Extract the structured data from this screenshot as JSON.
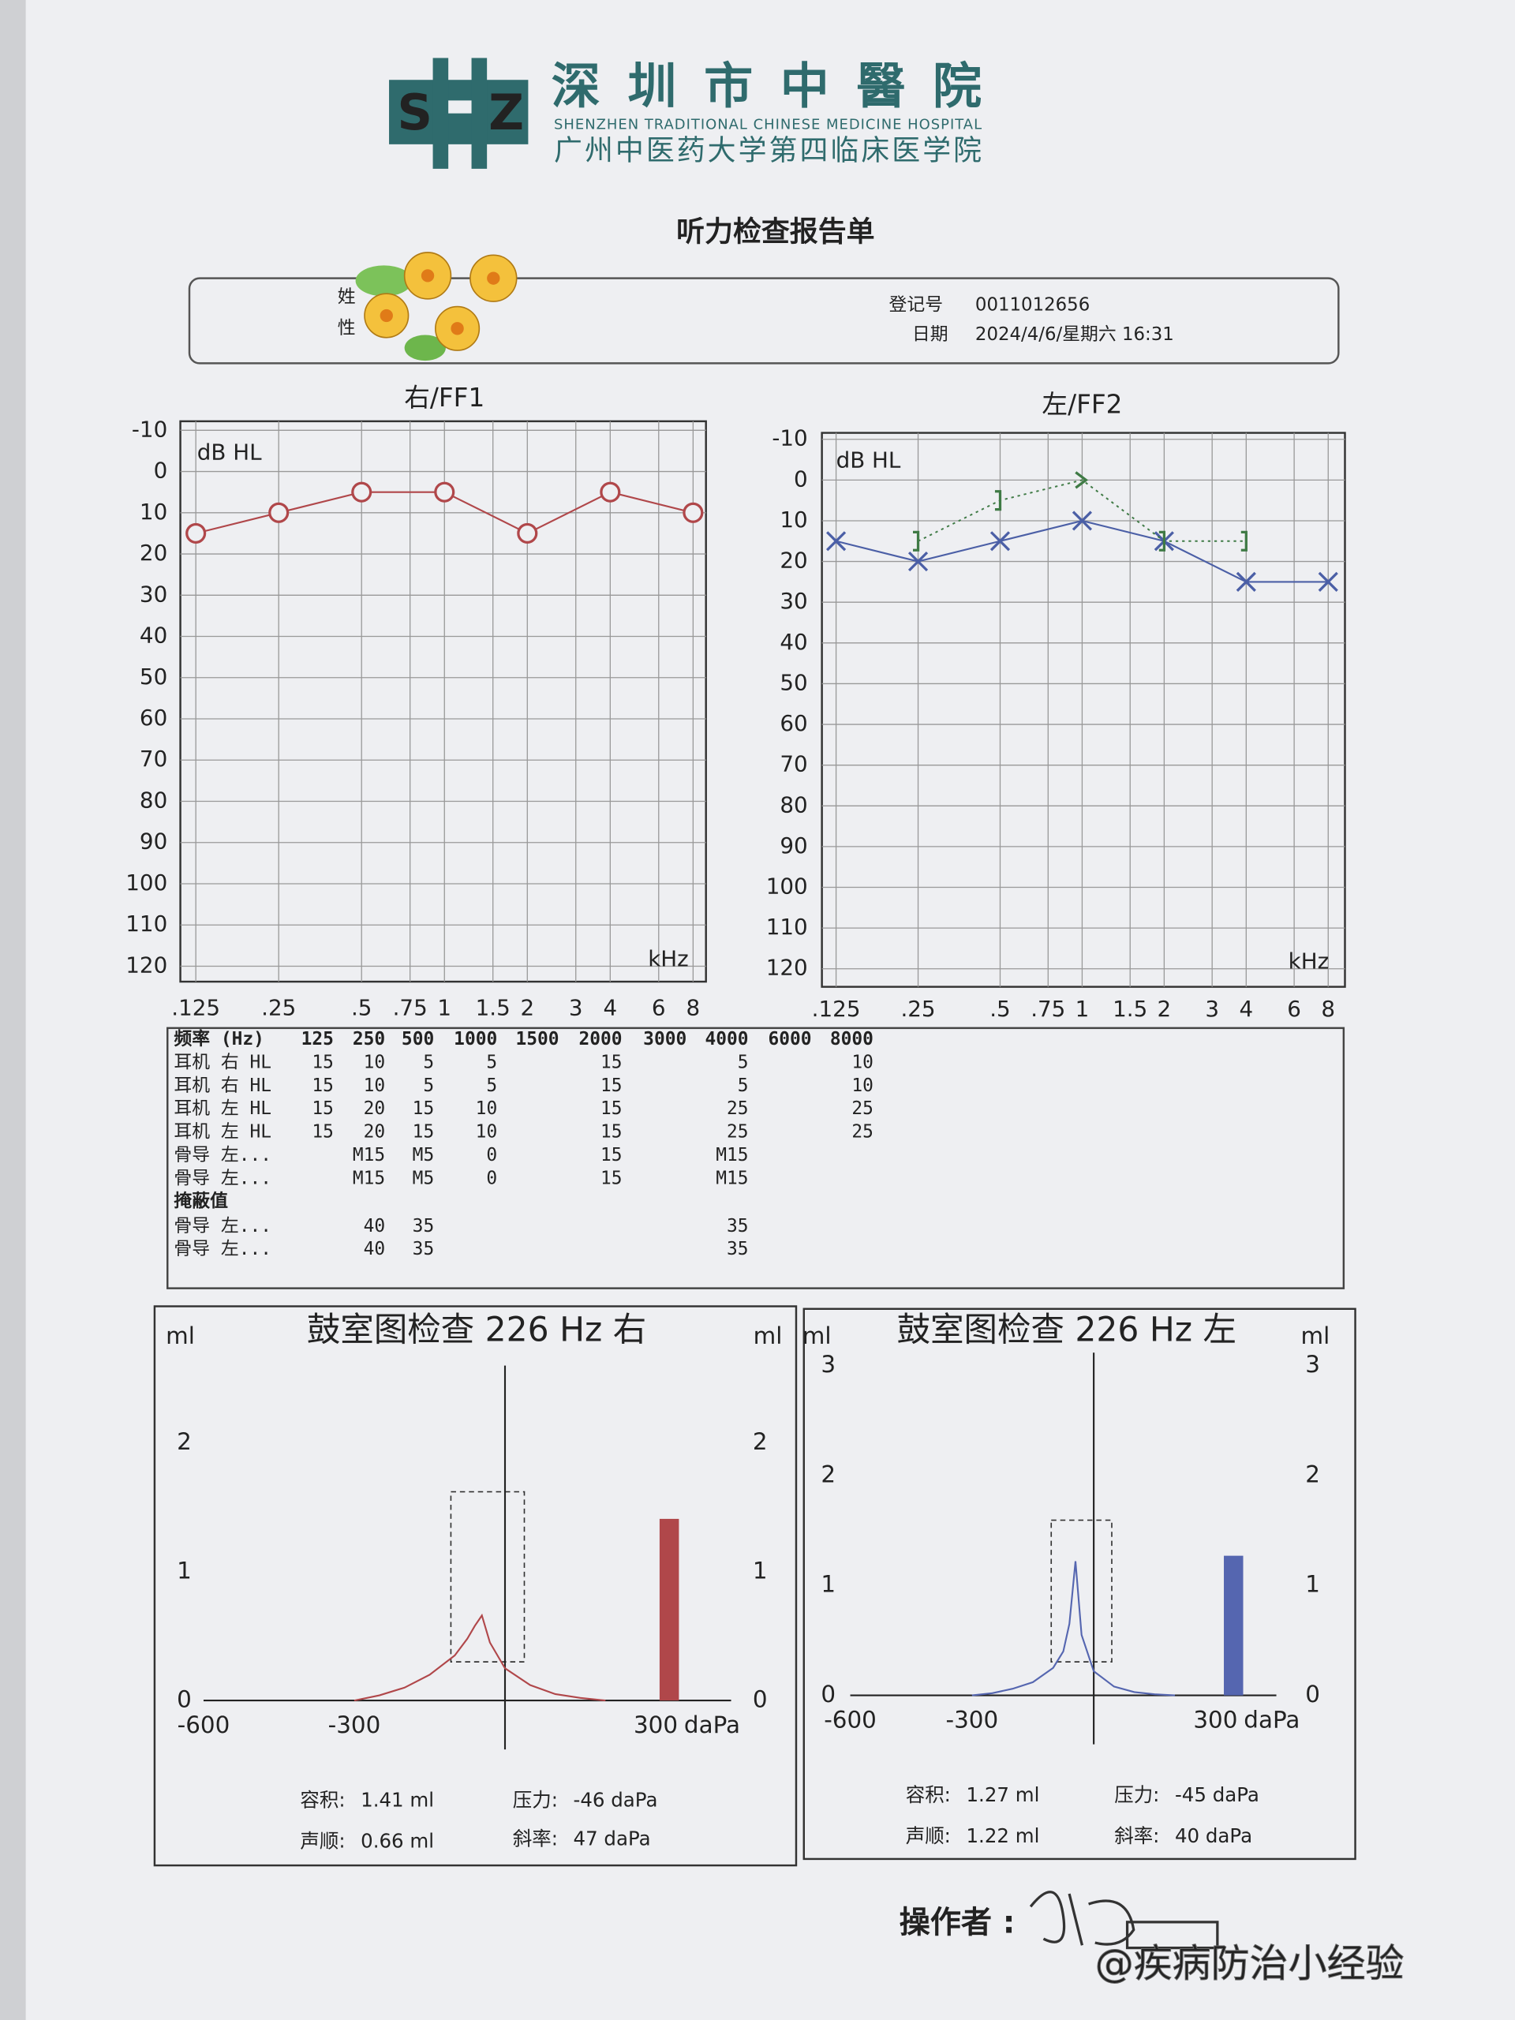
{
  "header": {
    "logo_letters": [
      "S",
      "Z"
    ],
    "name": "深圳市中醫院",
    "name_en": "SHENZHEN TRADITIONAL CHINESE MEDICINE HOSPITAL",
    "affiliation": "广州中医药大学第四临床医学院"
  },
  "title": "听力检查报告单",
  "patient": {
    "name_label": "姓",
    "sex_label": "性",
    "reg_label": "登记号",
    "reg_no": "0011012656",
    "date_label": "日期",
    "date": "2024/4/6/星期六 16:31"
  },
  "audiograms": [
    {
      "title": "右/FF1",
      "unit_label": "dB HL",
      "x_label": "kHz",
      "ylim": [
        -10,
        120
      ],
      "yticks": [
        -10,
        0,
        10,
        20,
        30,
        40,
        50,
        60,
        70,
        80,
        90,
        100,
        110,
        120
      ],
      "xscale": "log",
      "xlim": [
        0.125,
        8
      ],
      "xticks": [
        {
          "value": 0.125,
          "label": ".125"
        },
        {
          "value": 0.25,
          "label": ".25"
        },
        {
          "value": 0.5,
          "label": ".5"
        },
        {
          "value": 0.75,
          "label": ".75"
        },
        1,
        1.5,
        2,
        3,
        4,
        6,
        8
      ],
      "series": [
        {
          "marker": "circle",
          "line": "solid",
          "color": "#b0474a",
          "x": [
            0.125,
            0.25,
            0.5,
            1,
            2,
            4,
            8
          ],
          "values": [
            15,
            10,
            5,
            5,
            15,
            5,
            10
          ]
        }
      ]
    },
    {
      "title": "左/FF2",
      "unit_label": "dB HL",
      "x_label": "kHz",
      "ylim": [
        -10,
        120
      ],
      "yticks": [
        -10,
        0,
        10,
        20,
        30,
        40,
        50,
        60,
        70,
        80,
        90,
        100,
        110,
        120
      ],
      "xscale": "log",
      "xlim": [
        0.125,
        8
      ],
      "xticks": [
        {
          "value": 0.125,
          "label": ".125"
        },
        {
          "value": 0.25,
          "label": ".25"
        },
        {
          "value": 0.5,
          "label": ".5"
        },
        {
          "value": 0.75,
          "label": ".75"
        },
        1,
        1.5,
        2,
        3,
        4,
        6,
        8
      ],
      "series": [
        {
          "marker": "cross",
          "line": "solid",
          "color": "#4b5fa6",
          "x": [
            0.125,
            0.25,
            0.5,
            1,
            2,
            4,
            8
          ],
          "values": [
            15,
            20,
            15,
            10,
            15,
            25,
            25
          ]
        },
        {
          "marker": "bracket",
          "line": "dotted",
          "color": "#3f7a45",
          "x": [
            0.25,
            0.5,
            1,
            2,
            4
          ],
          "values": [
            15,
            5,
            0,
            15,
            15
          ],
          "markers": [
            "bracket",
            "bracket",
            "arrow",
            "bracket",
            "bracket"
          ]
        }
      ]
    }
  ],
  "table": {
    "columns": [
      "频率 (Hz)",
      "125",
      "250",
      "500",
      "1000",
      "1500",
      "2000",
      "3000",
      "4000",
      "6000",
      "8000"
    ],
    "rows": [
      {
        "label": "耳机 右 HL",
        "cells": [
          15,
          10,
          5,
          5,
          null,
          15,
          null,
          5,
          null,
          10
        ]
      },
      {
        "label": "耳机 右 HL",
        "cells": [
          15,
          10,
          5,
          5,
          null,
          15,
          null,
          5,
          null,
          10
        ]
      },
      {
        "label": "耳机 左 HL",
        "cells": [
          15,
          20,
          15,
          10,
          null,
          15,
          null,
          25,
          null,
          25
        ]
      },
      {
        "label": "耳机 左 HL",
        "cells": [
          15,
          20,
          15,
          10,
          null,
          15,
          null,
          25,
          null,
          25
        ]
      },
      {
        "label": "骨导 左...",
        "cells": [
          null,
          "M15",
          "M5",
          0,
          null,
          15,
          null,
          "M15",
          null,
          null
        ]
      },
      {
        "label": "骨导 左...",
        "cells": [
          null,
          "M15",
          "M5",
          0,
          null,
          15,
          null,
          "M15",
          null,
          null
        ]
      },
      {
        "label": "掩蔽值",
        "cells": []
      },
      {
        "label": "骨导 左...",
        "cells": [
          null,
          40,
          35,
          null,
          null,
          null,
          null,
          35,
          null,
          null
        ]
      },
      {
        "label": "骨导 左...",
        "cells": [
          null,
          40,
          35,
          null,
          null,
          null,
          null,
          35,
          null,
          null
        ]
      }
    ]
  },
  "tympanograms": [
    {
      "title": "鼓室图检查 226 Hz 右",
      "y_label": "ml",
      "x_unit": "daPa",
      "xlim": [
        -600,
        450
      ],
      "xticks": [
        -600,
        -300,
        300
      ],
      "ylim": [
        0,
        2.5
      ],
      "yticks": [
        0,
        1,
        2
      ],
      "color": "#b0474a",
      "curve": {
        "x": [
          -300,
          -250,
          -200,
          -150,
          -100,
          -75,
          -60,
          -46,
          -30,
          0,
          50,
          100,
          150,
          200
        ],
        "values": [
          0,
          0.04,
          0.1,
          0.2,
          0.35,
          0.48,
          0.58,
          0.66,
          0.45,
          0.25,
          0.12,
          0.05,
          0.02,
          0
        ]
      },
      "volume": 1.41,
      "stats": [
        {
          "label": "容积:",
          "value": "1.41 ml"
        },
        {
          "label": "压力:",
          "value": "-46 daPa"
        },
        {
          "label": "声顺:",
          "value": "0.66 ml"
        },
        {
          "label": "斜率:",
          "value": "47 daPa"
        }
      ]
    },
    {
      "title": "鼓室图检查 226 Hz 左",
      "y_label": "ml",
      "x_unit": "daPa",
      "xlim": [
        -600,
        450
      ],
      "xticks": [
        -600,
        -300,
        300
      ],
      "ylim": [
        0,
        3
      ],
      "yticks": [
        0,
        1,
        2,
        3
      ],
      "color": "#5566b0",
      "curve": {
        "x": [
          -300,
          -250,
          -200,
          -150,
          -100,
          -75,
          -60,
          -45,
          -30,
          0,
          50,
          100,
          150,
          200
        ],
        "values": [
          0,
          0.02,
          0.06,
          0.12,
          0.25,
          0.4,
          0.65,
          1.22,
          0.55,
          0.22,
          0.08,
          0.03,
          0.01,
          0
        ]
      },
      "volume": 1.27,
      "stats": [
        {
          "label": "容积:",
          "value": "1.27 ml"
        },
        {
          "label": "压力:",
          "value": "-45 daPa"
        },
        {
          "label": "声顺:",
          "value": "1.22 ml"
        },
        {
          "label": "斜率:",
          "value": "40 daPa"
        }
      ]
    }
  ],
  "footer": {
    "operator_label": "操作者 :",
    "watermark": "@疾病防治小经验"
  }
}
